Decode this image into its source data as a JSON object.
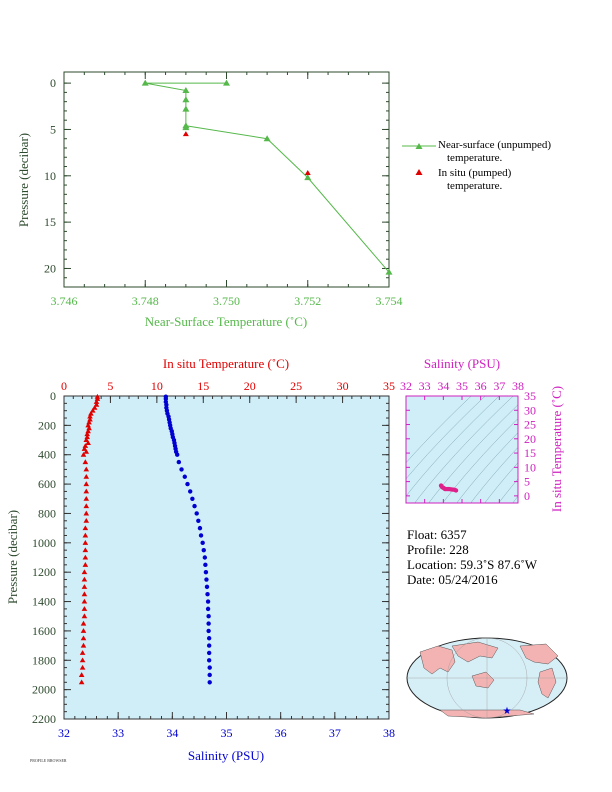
{
  "colors": {
    "green": "#55b84a",
    "red": "#e00000",
    "blue": "#0000d0",
    "magenta": "#d020c0",
    "panel_bg": "#cfeef8",
    "land": "#f4b3b3",
    "ocean": "#d6eef6"
  },
  "chart_data": [
    {
      "type": "line",
      "xlabel": "Near-Surface Temperature (˚C)",
      "ylabel": "Pressure (decibar)",
      "xlim": [
        3.746,
        3.754
      ],
      "ylim": [
        22,
        -1.2
      ],
      "xticks": [
        "3.746",
        "3.748",
        "3.750",
        "3.752",
        "3.754"
      ],
      "yticks": [
        "0",
        "5",
        "10",
        "15",
        "20"
      ],
      "series": [
        {
          "name": "Near-surface (unpumped)\ntemperature.",
          "marker": "triangle",
          "x": [
            3.75,
            3.748,
            3.749,
            3.749,
            3.749,
            3.749,
            3.749,
            3.751,
            3.752,
            3.754
          ],
          "y": [
            0.0,
            0.0,
            0.8,
            1.8,
            2.8,
            4.8,
            4.6,
            6.0,
            10.2,
            20.4
          ]
        },
        {
          "name": "In situ (pumped)\ntemperature.",
          "marker": "triangle",
          "x": [
            3.749,
            3.752
          ],
          "y": [
            5.5,
            9.7
          ]
        }
      ],
      "legend": [
        "Near-surface (unpumped)",
        "temperature.",
        "In situ (pumped)",
        "temperature."
      ]
    },
    {
      "type": "scatter",
      "top_xlabel": "In situ Temperature (˚C)",
      "bottom_xlabel": "Salinity (PSU)",
      "ylabel": "Pressure (decibar)",
      "temp_xlim": [
        0,
        35
      ],
      "sal_xlim": [
        32,
        38
      ],
      "ylim": [
        2200,
        0
      ],
      "temp_ticks": [
        "0",
        "5",
        "10",
        "15",
        "20",
        "25",
        "30",
        "35"
      ],
      "sal_ticks": [
        "32",
        "33",
        "34",
        "35",
        "36",
        "37",
        "38"
      ],
      "yticks": [
        "0",
        "200",
        "400",
        "600",
        "800",
        "1000",
        "1200",
        "1400",
        "1600",
        "1800",
        "2000",
        "2200"
      ],
      "temperature": {
        "pressure": [
          5,
          20,
          40,
          60,
          80,
          100,
          120,
          140,
          160,
          180,
          200,
          220,
          240,
          260,
          280,
          300,
          320,
          340,
          360,
          380,
          400,
          450,
          500,
          550,
          600,
          650,
          700,
          750,
          800,
          850,
          900,
          950,
          1000,
          1050,
          1100,
          1150,
          1200,
          1250,
          1300,
          1350,
          1400,
          1450,
          1500,
          1550,
          1600,
          1650,
          1700,
          1750,
          1800,
          1850,
          1900,
          1950
        ],
        "values": [
          3.6,
          3.6,
          3.5,
          3.5,
          3.3,
          3.1,
          2.9,
          2.8,
          2.8,
          2.7,
          2.6,
          2.7,
          2.6,
          2.5,
          2.5,
          2.4,
          2.6,
          2.3,
          2.2,
          2.4,
          2.1,
          2.3,
          2.4,
          2.4,
          2.4,
          2.4,
          2.4,
          2.4,
          2.4,
          2.4,
          2.3,
          2.3,
          2.3,
          2.3,
          2.3,
          2.3,
          2.2,
          2.2,
          2.2,
          2.2,
          2.2,
          2.2,
          2.2,
          2.1,
          2.1,
          2.1,
          2.1,
          2.0,
          2.0,
          2.0,
          1.9,
          1.9
        ]
      },
      "salinity": {
        "pressure": [
          5,
          20,
          40,
          60,
          80,
          100,
          120,
          140,
          160,
          180,
          200,
          220,
          240,
          260,
          280,
          300,
          320,
          340,
          360,
          380,
          400,
          450,
          500,
          550,
          600,
          650,
          700,
          750,
          800,
          850,
          900,
          950,
          1000,
          1050,
          1100,
          1150,
          1200,
          1250,
          1300,
          1350,
          1400,
          1450,
          1500,
          1550,
          1600,
          1650,
          1700,
          1750,
          1800,
          1850,
          1900,
          1950
        ],
        "values": [
          33.88,
          33.88,
          33.88,
          33.89,
          33.89,
          33.9,
          33.91,
          33.93,
          33.94,
          33.95,
          33.96,
          33.97,
          33.99,
          34.0,
          34.01,
          34.03,
          34.04,
          34.05,
          34.06,
          34.07,
          34.09,
          34.12,
          34.17,
          34.23,
          34.28,
          34.33,
          34.37,
          34.41,
          34.45,
          34.48,
          34.51,
          34.53,
          34.56,
          34.58,
          34.6,
          34.61,
          34.62,
          34.63,
          34.64,
          34.65,
          34.66,
          34.66,
          34.67,
          34.67,
          34.67,
          34.68,
          34.68,
          34.68,
          34.68,
          34.69,
          34.69,
          34.69
        ]
      }
    },
    {
      "type": "scatter",
      "top_xlabel": "Salinity (PSU)",
      "ylabel": "In situ Temperature (˚C)",
      "xlim": [
        32,
        38
      ],
      "ylim": [
        -2.5,
        35
      ],
      "xticks": [
        "32",
        "33",
        "34",
        "35",
        "36",
        "37",
        "38"
      ],
      "yticks": [
        "0",
        "5",
        "10",
        "15",
        "20",
        "25",
        "30",
        "35"
      ],
      "points_x": [
        33.88,
        33.9,
        33.95,
        34.0,
        34.05,
        34.1,
        34.2,
        34.3,
        34.4,
        34.5,
        34.6,
        34.68
      ],
      "points_y": [
        3.6,
        3.4,
        3.0,
        2.8,
        2.6,
        2.4,
        2.4,
        2.4,
        2.3,
        2.2,
        2.1,
        1.9
      ]
    }
  ],
  "info": {
    "float": "Float:  6357",
    "profile": "Profile:  228",
    "location": "Location:  59.3˚S  87.6˚W",
    "date": "Date:  05/24/2016"
  },
  "footer_tiny": "PROFILE BROWSER"
}
